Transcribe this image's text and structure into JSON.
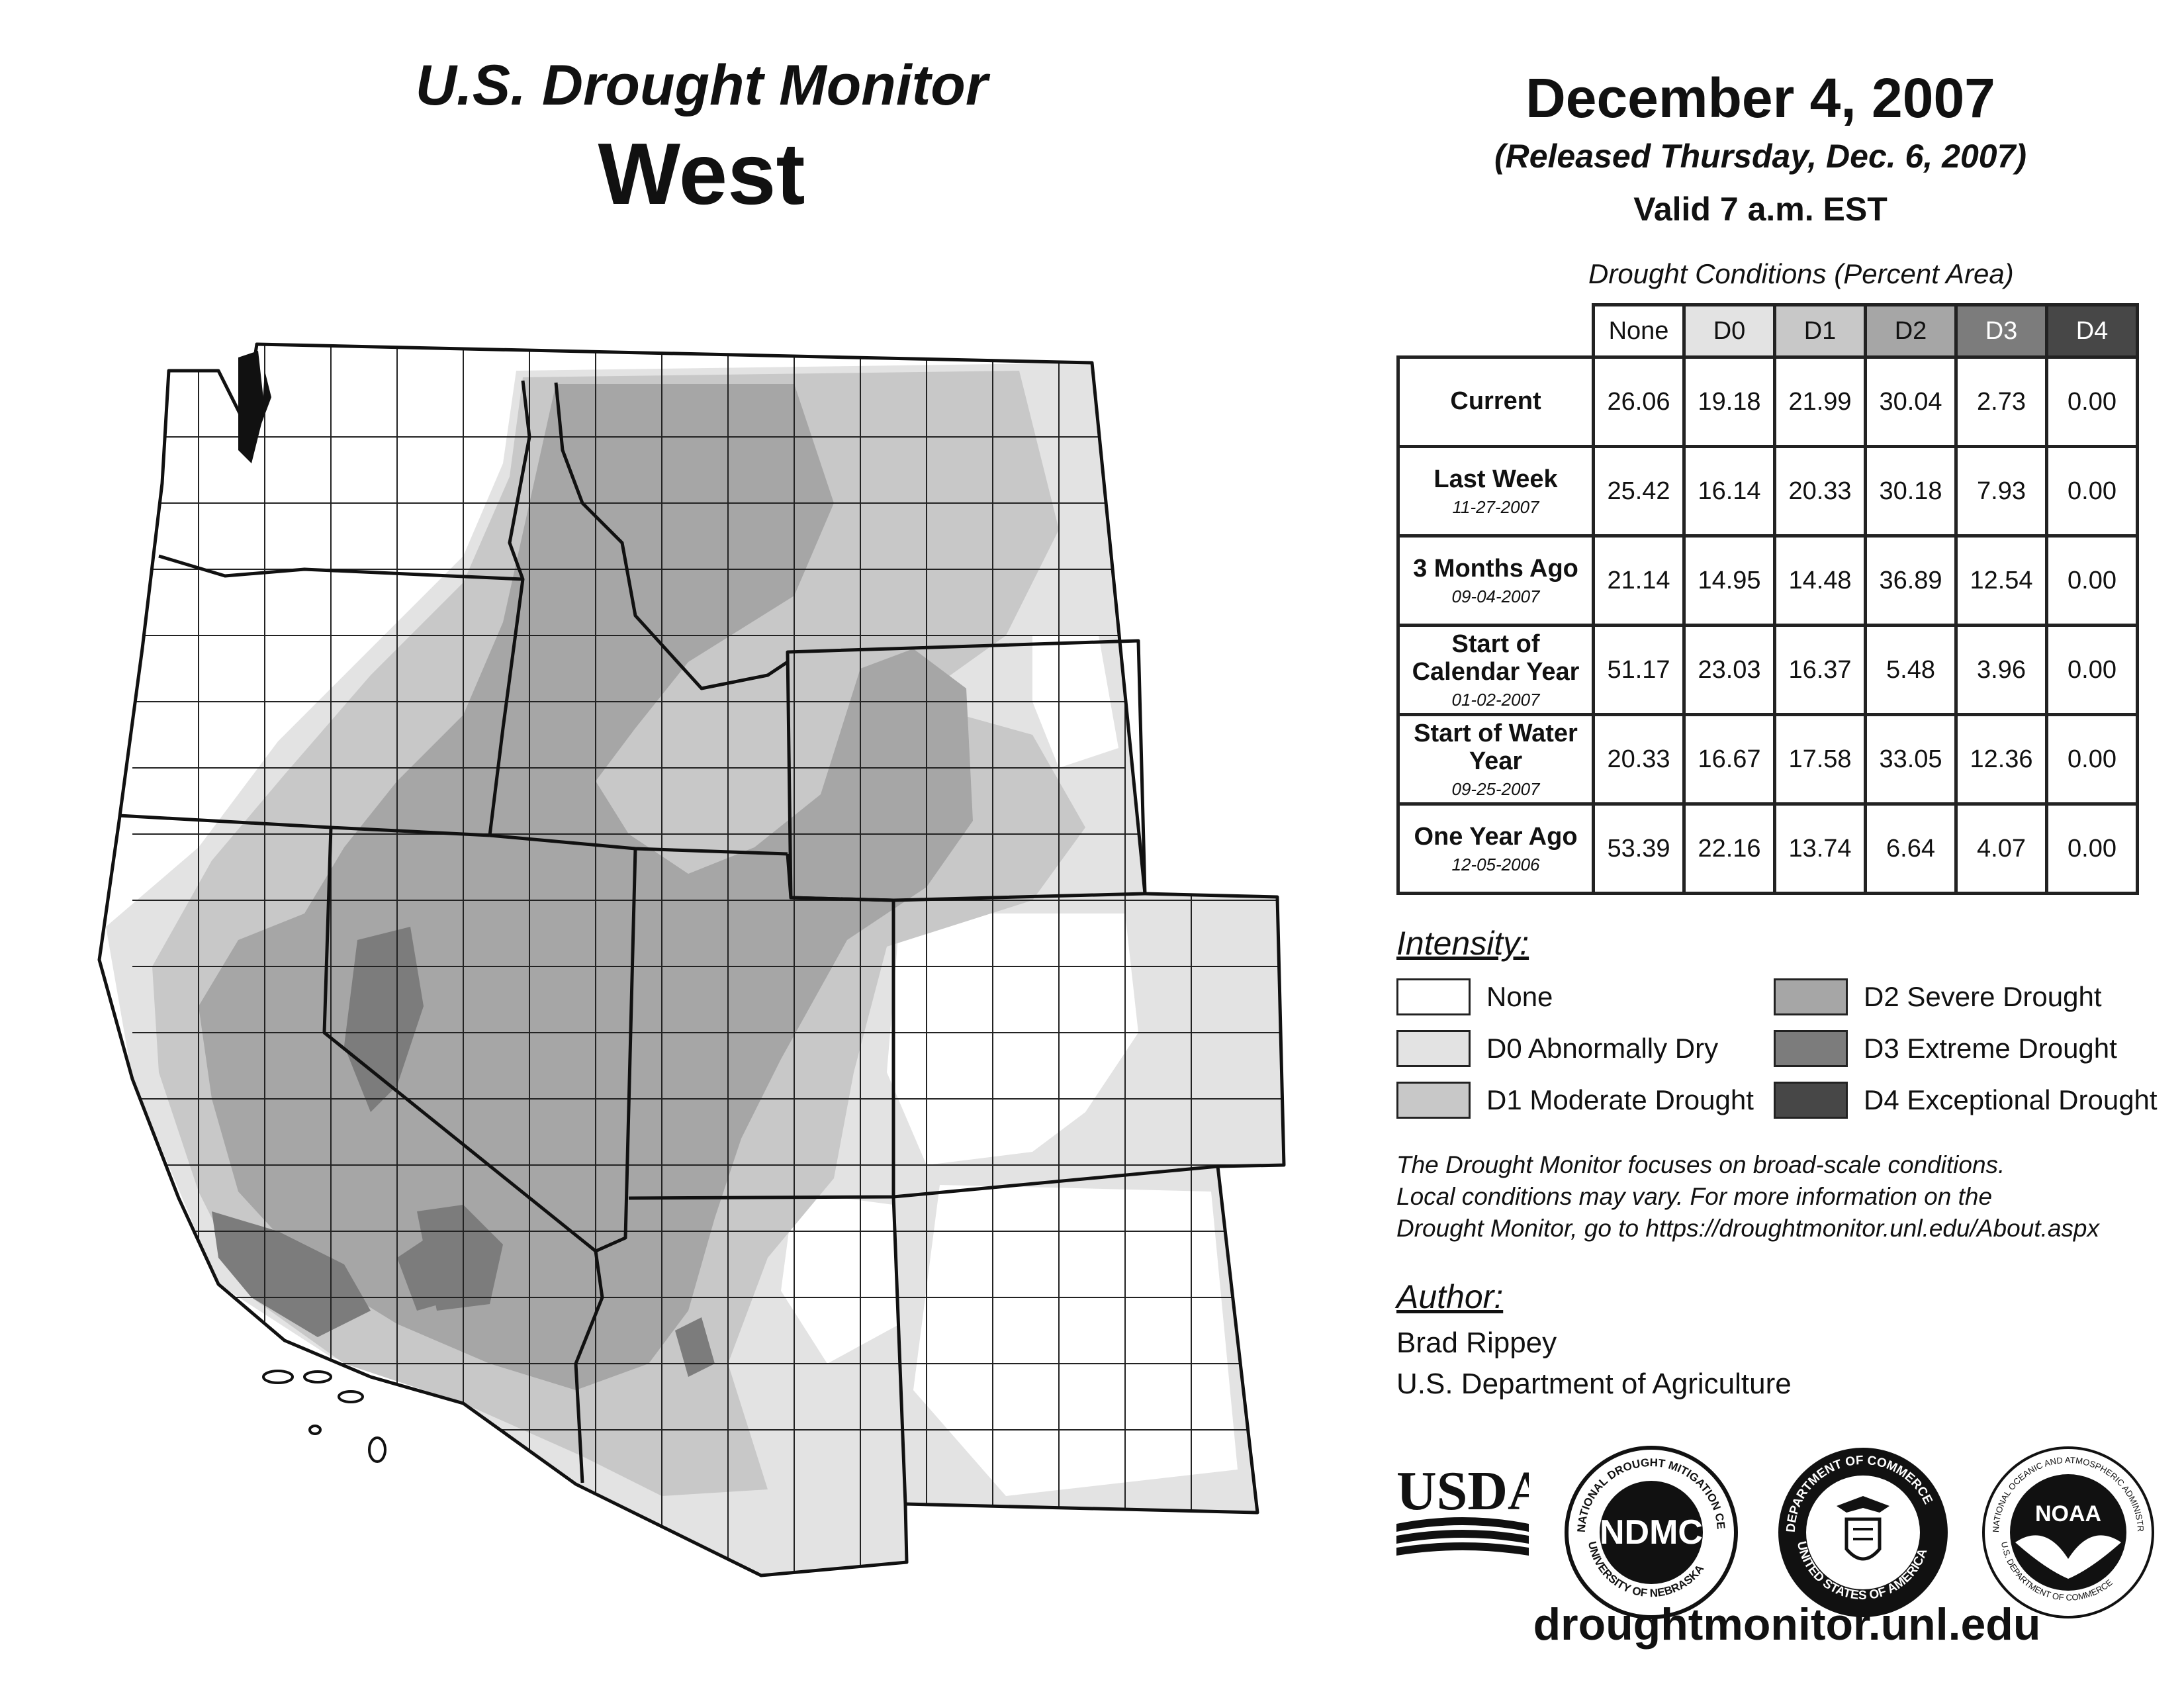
{
  "header": {
    "title": "U.S. Drought Monitor",
    "region": "West",
    "date": "December 4, 2007",
    "released": "(Released Thursday, Dec. 6, 2007)",
    "valid": "Valid 7 a.m. EST"
  },
  "table": {
    "caption": "Drought Conditions (Percent Area)",
    "columns": [
      "None",
      "D0",
      "D1",
      "D2",
      "D3",
      "D4"
    ],
    "rows": [
      {
        "label": "Current",
        "date": "",
        "values": [
          "26.06",
          "19.18",
          "21.99",
          "30.04",
          "2.73",
          "0.00"
        ]
      },
      {
        "label": "Last Week",
        "date": "11-27-2007",
        "values": [
          "25.42",
          "16.14",
          "20.33",
          "30.18",
          "7.93",
          "0.00"
        ]
      },
      {
        "label": "3 Months Ago",
        "date": "09-04-2007",
        "values": [
          "21.14",
          "14.95",
          "14.48",
          "36.89",
          "12.54",
          "0.00"
        ]
      },
      {
        "label": "Start of Calendar Year",
        "date": "01-02-2007",
        "values": [
          "51.17",
          "23.03",
          "16.37",
          "5.48",
          "3.96",
          "0.00"
        ]
      },
      {
        "label": "Start of Water Year",
        "date": "09-25-2007",
        "values": [
          "20.33",
          "16.67",
          "17.58",
          "33.05",
          "12.36",
          "0.00"
        ]
      },
      {
        "label": "One Year Ago",
        "date": "12-05-2006",
        "values": [
          "53.39",
          "22.16",
          "13.74",
          "6.64",
          "4.07",
          "0.00"
        ]
      }
    ]
  },
  "legend": {
    "title": "Intensity:",
    "items": [
      {
        "label": "None",
        "color": "#ffffff"
      },
      {
        "label": "D0 Abnormally Dry",
        "color": "#e3e3e3"
      },
      {
        "label": "D1 Moderate Drought",
        "color": "#c8c8c8"
      },
      {
        "label": "D2 Severe Drought",
        "color": "#a6a6a6"
      },
      {
        "label": "D3 Extreme Drought",
        "color": "#7c7c7c"
      },
      {
        "label": "D4 Exceptional Drought",
        "color": "#474747"
      }
    ]
  },
  "note": {
    "line1": "The Drought Monitor focuses on broad-scale conditions.",
    "line2": "Local conditions may vary. For more information on the",
    "line3": "Drought Monitor, go to https://droughtmonitor.unl.edu/About.aspx"
  },
  "author": {
    "title": "Author:",
    "name": "Brad Rippey",
    "org": "U.S. Department of Agriculture"
  },
  "logos": {
    "usda": "USDA",
    "ndmc": "NDMC",
    "ndmc_ring_top": "NATIONAL DROUGHT MITIGATION CENTER",
    "ndmc_ring_bottom": "UNIVERSITY OF NEBRASKA",
    "doc_ring_top": "DEPARTMENT OF COMMERCE",
    "doc_ring_bottom": "UNITED STATES OF AMERICA",
    "noaa": "NOAA",
    "noaa_ring_top": "NATIONAL OCEANIC AND ATMOSPHERIC ADMINISTRATION",
    "noaa_ring_bottom": "U.S. DEPARTMENT OF COMMERCE"
  },
  "website": "droughtmonitor.unl.edu",
  "map": {
    "states": [
      "Washington",
      "Oregon",
      "California",
      "Idaho",
      "Nevada",
      "Utah",
      "Arizona",
      "Montana",
      "Wyoming",
      "Colorado",
      "New Mexico"
    ]
  }
}
